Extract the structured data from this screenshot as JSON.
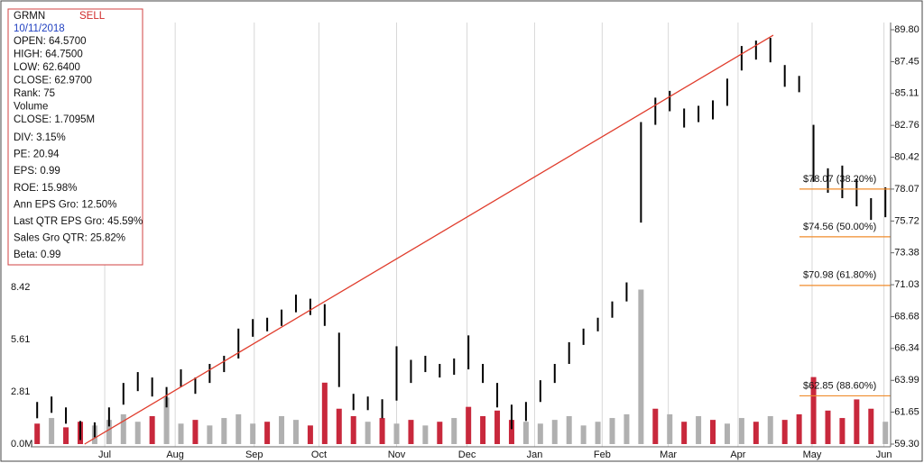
{
  "chart_data": {
    "type": "ohlc",
    "info": {
      "ticker": "GRMN",
      "signal": "SELL",
      "date": "10/11/2018",
      "lines": [
        "OPEN: 64.5700",
        "HIGH: 64.7500",
        "LOW: 62.6400",
        "CLOSE: 62.9700",
        "Rank: 75",
        "Volume",
        "CLOSE: 1.7095M"
      ],
      "stats": [
        "DIV: 3.15%",
        "PE: 20.94",
        "EPS: 0.99",
        "ROE: 15.98%",
        "Ann EPS Gro: 12.50%",
        "Last QTR EPS Gro: 45.59%",
        "Sales Gro QTR: 25.82%",
        "Beta: 0.99"
      ]
    },
    "xlim": [
      -0.2,
      59.3
    ],
    "xticks": [
      {
        "value": 4.7,
        "label": "Jul"
      },
      {
        "value": 9.6,
        "label": "Aug"
      },
      {
        "value": 15.1,
        "label": "Sep"
      },
      {
        "value": 19.6,
        "label": "Oct"
      },
      {
        "value": 25,
        "label": "Nov"
      },
      {
        "value": 29.9,
        "label": "Dec"
      },
      {
        "value": 34.6,
        "label": "Jan"
      },
      {
        "value": 39.3,
        "label": "Feb"
      },
      {
        "value": 43.9,
        "label": "Mar"
      },
      {
        "value": 48.75,
        "label": "Apr"
      },
      {
        "value": 53.9,
        "label": "May"
      },
      {
        "value": 58.9,
        "label": "Jun"
      }
    ],
    "ylim": [
      59.3,
      89.8
    ],
    "yticks": [
      {
        "value": 89.8,
        "label": "89.80"
      },
      87.45,
      85.11,
      82.76,
      80.42,
      78.07,
      75.72,
      73.38,
      71.03,
      68.68,
      66.34,
      63.99,
      61.65,
      {
        "value": 59.3,
        "label": "59.30"
      }
    ],
    "y2lim": [
      0,
      22.26
    ],
    "y2ticks": [
      {
        "value": 0,
        "label": "0.0M"
      },
      2.81,
      5.61,
      8.42
    ],
    "grid": true,
    "price": {
      "color": "#000000",
      "high": [
        62.4,
        62.8,
        62.0,
        61.0,
        60.9,
        62.0,
        63.8,
        64.6,
        64.2,
        63.5,
        64.8,
        64.2,
        65.2,
        65.8,
        67.8,
        68.5,
        68.6,
        69.2,
        70.3,
        70.0,
        69.6,
        67.5,
        63.0,
        62.8,
        62.6,
        66.5,
        65.5,
        65.8,
        65.2,
        65.6,
        67.3,
        65.2,
        63.8,
        62.2,
        62.4,
        64.0,
        65.2,
        66.8,
        67.8,
        68.6,
        69.8,
        71.2,
        83.0,
        84.8,
        85.3,
        84.0,
        84.2,
        84.6,
        86.2,
        88.6,
        89.0,
        89.2,
        87.2,
        86.4,
        82.8,
        79.6,
        79.8,
        78.8,
        77.4,
        78.2
      ],
      "low": [
        61.2,
        61.6,
        60.8,
        59.6,
        59.8,
        60.6,
        62.2,
        63.2,
        62.8,
        62.0,
        63.5,
        63.0,
        63.8,
        64.6,
        65.6,
        67.2,
        67.6,
        68.0,
        69.0,
        68.8,
        68.0,
        63.5,
        61.8,
        61.8,
        61.2,
        62.5,
        63.8,
        64.6,
        64.2,
        64.4,
        64.8,
        63.8,
        62.0,
        60.4,
        61.0,
        62.4,
        63.8,
        65.2,
        66.6,
        67.6,
        68.6,
        69.8,
        75.6,
        82.8,
        83.8,
        82.6,
        83.0,
        83.2,
        84.2,
        86.8,
        87.6,
        87.4,
        85.6,
        85.2,
        78.6,
        77.8,
        77.4,
        76.8,
        75.8,
        76.0
      ]
    },
    "volume": {
      "axis": "y2",
      "values": [
        1.1,
        1.4,
        0.9,
        1.2,
        1.0,
        1.3,
        1.6,
        1.2,
        1.5,
        2.5,
        1.1,
        1.3,
        1.0,
        1.4,
        1.6,
        1.1,
        1.2,
        1.5,
        1.3,
        1.0,
        3.3,
        1.9,
        1.5,
        1.2,
        1.4,
        1.1,
        1.3,
        1.0,
        1.2,
        1.4,
        2.0,
        1.5,
        1.8,
        1.3,
        1.2,
        1.1,
        1.3,
        1.5,
        1.0,
        1.2,
        1.4,
        1.6,
        8.3,
        1.9,
        1.6,
        1.2,
        1.5,
        1.3,
        1.1,
        1.4,
        1.2,
        1.5,
        1.3,
        1.6,
        3.6,
        1.8,
        1.4,
        2.4,
        1.9,
        1.2
      ],
      "colors": [
        "#c8283c",
        "#b0b0b0",
        "#c8283c",
        "#c8283c",
        "#b0b0b0",
        "#b0b0b0",
        "#b0b0b0",
        "#b0b0b0",
        "#c8283c",
        "#b0b0b0",
        "#b0b0b0",
        "#c8283c",
        "#b0b0b0",
        "#b0b0b0",
        "#b0b0b0",
        "#b0b0b0",
        "#c8283c",
        "#b0b0b0",
        "#b0b0b0",
        "#c8283c",
        "#c8283c",
        "#c8283c",
        "#c8283c",
        "#b0b0b0",
        "#c8283c",
        "#b0b0b0",
        "#c8283c",
        "#b0b0b0",
        "#c8283c",
        "#b0b0b0",
        "#c8283c",
        "#c8283c",
        "#c8283c",
        "#c8283c",
        "#b0b0b0",
        "#b0b0b0",
        "#b0b0b0",
        "#b0b0b0",
        "#b0b0b0",
        "#b0b0b0",
        "#b0b0b0",
        "#b0b0b0",
        "#b0b0b0",
        "#c8283c",
        "#b0b0b0",
        "#c8283c",
        "#b0b0b0",
        "#c8283c",
        "#b0b0b0",
        "#b0b0b0",
        "#c8283c",
        "#b0b0b0",
        "#c8283c",
        "#c8283c",
        "#c8283c",
        "#c8283c",
        "#c8283c",
        "#c8283c",
        "#c8283c",
        "#b0b0b0"
      ]
    },
    "trendline": {
      "color": "#e03c2c",
      "x": [
        3.3,
        51.2
      ],
      "y": [
        59.3,
        89.4
      ]
    },
    "fib_levels": [
      {
        "price": 78.07,
        "label": "$78.07 (38.20%)"
      },
      {
        "price": 74.56,
        "label": "$74.56 (50.00%)"
      },
      {
        "price": 70.98,
        "label": "$70.98 (61.80%)"
      },
      {
        "price": 62.85,
        "label": "$62.85 (88.60%)"
      }
    ],
    "fib_color": "#f08c2c"
  }
}
